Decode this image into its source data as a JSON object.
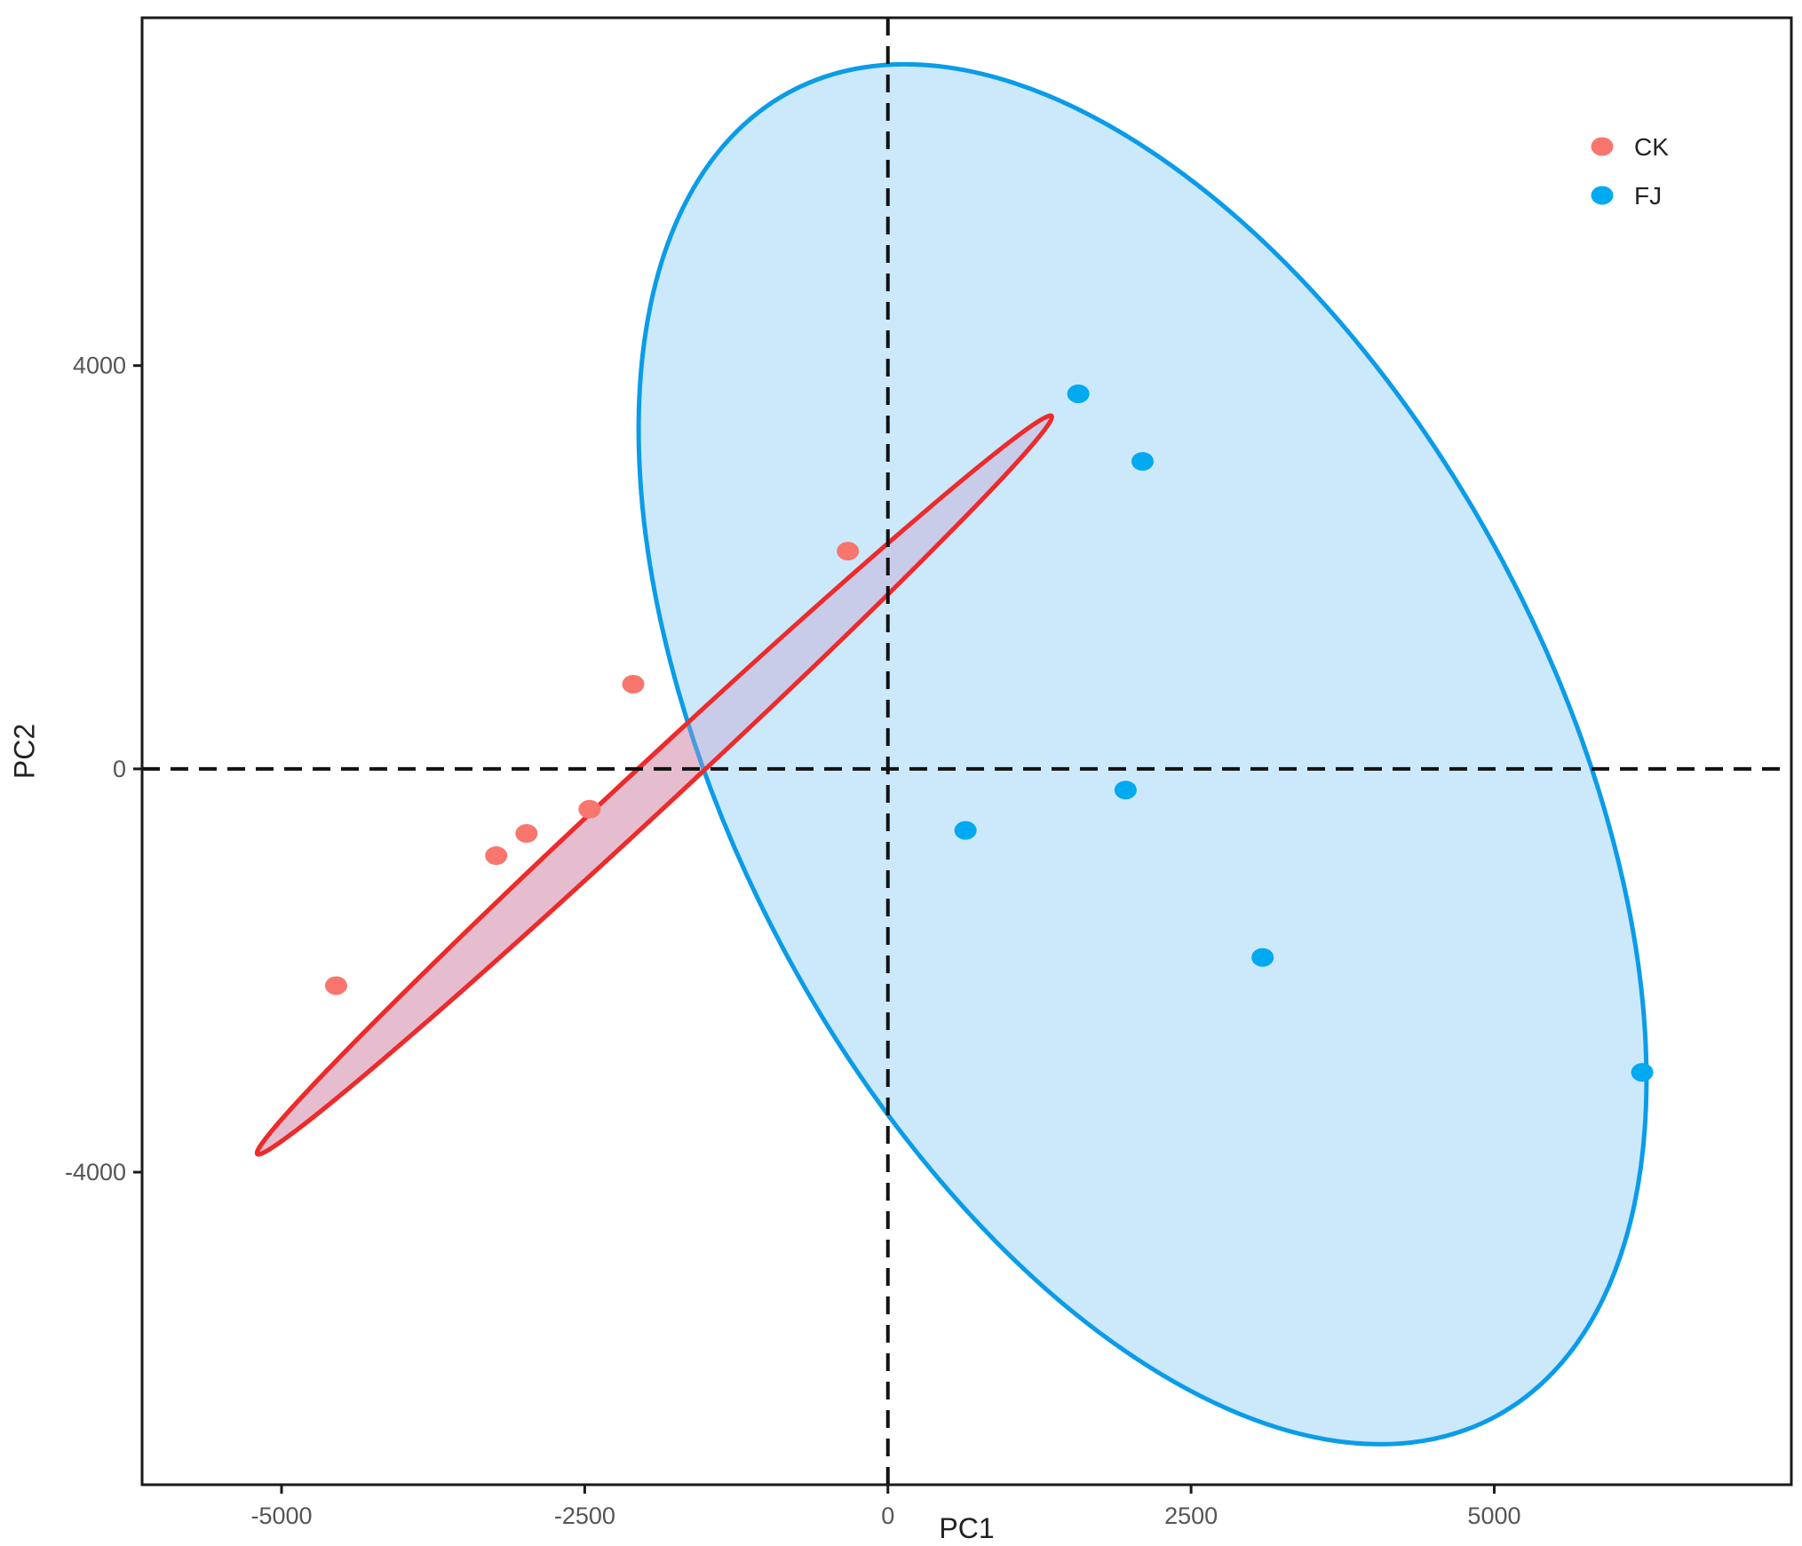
{
  "chart_data": {
    "type": "scatter",
    "title": "",
    "xlabel": "PC1",
    "ylabel": "PC2",
    "xlim": [
      -6150,
      7450
    ],
    "ylim": [
      -7100,
      7450
    ],
    "x_ticks": [
      -5000,
      -2500,
      0,
      2500,
      5000
    ],
    "x_tick_labels": [
      "-5000",
      "-2500",
      "0",
      "2500",
      "5000"
    ],
    "y_ticks": [
      -4000,
      0,
      4000
    ],
    "y_tick_labels": [
      "-4000",
      "0",
      "4000"
    ],
    "grid": false,
    "reference_lines": {
      "x": 0,
      "y": 0,
      "style": "dashed"
    },
    "legend": {
      "position": "top-right"
    },
    "series": [
      {
        "name": "CK",
        "color": "#F8766D",
        "ellipse_color": "#EE2A2A",
        "ellipse_fill": "#F9C8C8",
        "points": [
          {
            "x": -4550,
            "y": -2150
          },
          {
            "x": -3230,
            "y": -860
          },
          {
            "x": -2980,
            "y": -640
          },
          {
            "x": -2460,
            "y": -400
          },
          {
            "x": -2100,
            "y": 840
          },
          {
            "x": -330,
            "y": 2160
          }
        ],
        "ellipse_outline": [
          {
            "x": 1350,
            "y": 3500
          },
          {
            "x": -5200,
            "y": -3820
          }
        ]
      },
      {
        "name": "FJ",
        "color": "#00A9F0",
        "ellipse_color": "#0A9CE8",
        "ellipse_fill": "#C9E7FB",
        "points": [
          {
            "x": 1570,
            "y": 3720
          },
          {
            "x": 2100,
            "y": 3050
          },
          {
            "x": 640,
            "y": -610
          },
          {
            "x": 1960,
            "y": -210
          },
          {
            "x": 3090,
            "y": -1870
          },
          {
            "x": 6220,
            "y": -3010
          }
        ],
        "ellipse_outline": [
          {
            "x": -800,
            "y": 6720
          },
          {
            "x": 5000,
            "y": -6430
          }
        ]
      }
    ]
  }
}
